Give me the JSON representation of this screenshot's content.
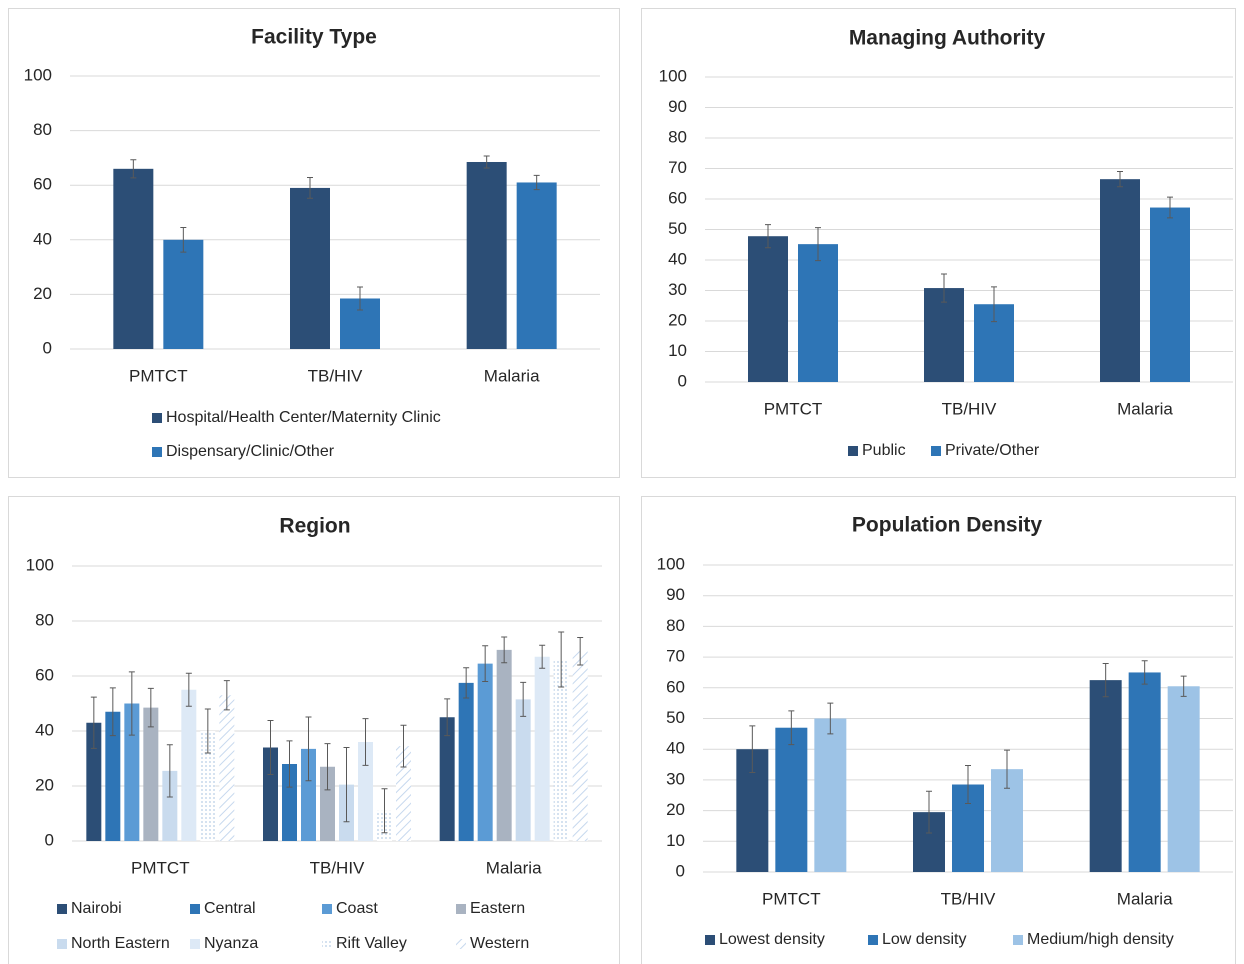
{
  "chart_data": [
    {
      "type": "bar",
      "title": "Facility Type",
      "categories": [
        "PMTCT",
        "TB/HIV",
        "Malaria"
      ],
      "series": [
        {
          "name": "Hospital/Health Center/Maternity Clinic",
          "color": "#2c4e76",
          "values": [
            66,
            59,
            68.5
          ],
          "errors": [
            3.3,
            3.8,
            2.2
          ]
        },
        {
          "name": "Dispensary/Clinic/Other",
          "color": "#2e75b6",
          "values": [
            40,
            18.5,
            61
          ],
          "errors": [
            4.5,
            4.2,
            2.6
          ]
        }
      ],
      "ylim": [
        0,
        100
      ],
      "yticks": [
        0,
        20,
        40,
        60,
        80,
        100
      ],
      "grid": true
    },
    {
      "type": "bar",
      "title": "Managing Authority",
      "categories": [
        "PMTCT",
        "TB/HIV",
        "Malaria"
      ],
      "series": [
        {
          "name": "Public",
          "color": "#2c4e76",
          "values": [
            47.8,
            30.8,
            66.5
          ],
          "errors": [
            3.8,
            4.6,
            2.5
          ]
        },
        {
          "name": "Private/Other",
          "color": "#2e75b6",
          "values": [
            45.2,
            25.5,
            57.2
          ],
          "errors": [
            5.4,
            5.7,
            3.4
          ]
        }
      ],
      "ylim": [
        0,
        100
      ],
      "yticks": [
        0,
        10,
        20,
        30,
        40,
        50,
        60,
        70,
        80,
        90,
        100
      ],
      "grid": true
    },
    {
      "type": "bar",
      "title": "Region",
      "categories": [
        "PMTCT",
        "TB/HIV",
        "Malaria"
      ],
      "series": [
        {
          "name": "Nairobi",
          "color": "#2c4e76",
          "values": [
            43,
            34,
            45
          ],
          "errors": [
            9.3,
            9.8,
            6.7
          ]
        },
        {
          "name": "Central",
          "color": "#2e75b6",
          "values": [
            47,
            28,
            57.5
          ],
          "errors": [
            8.7,
            8.4,
            5.5
          ]
        },
        {
          "name": "Coast",
          "color": "#5b9bd5",
          "values": [
            50,
            33.5,
            64.5
          ],
          "errors": [
            11.5,
            11.6,
            6.5
          ]
        },
        {
          "name": "Eastern",
          "color": "#a9b3c1",
          "values": [
            48.5,
            27,
            69.5
          ],
          "errors": [
            7,
            8.4,
            4.7
          ]
        },
        {
          "name": "North Eastern",
          "color": "#c9dbee",
          "values": [
            25.5,
            20.5,
            51.5
          ],
          "errors": [
            9.5,
            13.5,
            6.2
          ]
        },
        {
          "name": "Nyanza",
          "color": "#dde9f6",
          "values": [
            55,
            36,
            67
          ],
          "errors": [
            6,
            8.5,
            4.2
          ]
        },
        {
          "name": "Rift Valley",
          "color": "#d5e2f1",
          "pattern": "dots",
          "values": [
            40,
            11,
            66
          ],
          "errors": [
            8,
            8,
            10
          ]
        },
        {
          "name": "Western",
          "color": "#d5e2f1",
          "pattern": "hatch",
          "values": [
            53,
            34.5,
            69
          ],
          "errors": [
            5.3,
            7.6,
            5
          ]
        }
      ],
      "ylim": [
        0,
        100
      ],
      "yticks": [
        0,
        20,
        40,
        60,
        80,
        100
      ],
      "grid": true
    },
    {
      "type": "bar",
      "title": "Population Density",
      "categories": [
        "PMTCT",
        "TB/HIV",
        "Malaria"
      ],
      "series": [
        {
          "name": "Lowest density",
          "color": "#2c4e76",
          "values": [
            40,
            19.5,
            62.5
          ],
          "errors": [
            7.6,
            6.8,
            5.4
          ]
        },
        {
          "name": "Low density",
          "color": "#2e75b6",
          "values": [
            47,
            28.5,
            65
          ],
          "errors": [
            5.5,
            6.2,
            3.8
          ]
        },
        {
          "name": "Medium/high density",
          "color": "#9dc3e6",
          "values": [
            50,
            33.5,
            60.5
          ],
          "errors": [
            5,
            6.2,
            3.3
          ]
        }
      ],
      "ylim": [
        0,
        100
      ],
      "yticks": [
        0,
        10,
        20,
        30,
        40,
        50,
        60,
        70,
        80,
        90,
        100
      ],
      "grid": true
    }
  ]
}
